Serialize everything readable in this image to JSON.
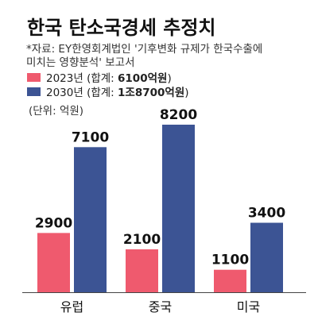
{
  "chart_data": {
    "type": "bar",
    "title": "한국 탄소국경세 추정치",
    "source": [
      "*자료: EY한영회계법인 '기후변화 규제가 한국수출에",
      "미치는 영향분석' 보고서"
    ],
    "unit": "(단위: 억원)",
    "categories": [
      "유럽",
      "중국",
      "미국"
    ],
    "series": [
      {
        "name_prefix": "2023년 (합계: ",
        "name_total": "6100억원",
        "name_suffix": ")",
        "color": "#ef5a6e",
        "values": [
          2900,
          2100,
          1100
        ],
        "labels": [
          "2900",
          "2100",
          "1100"
        ]
      },
      {
        "name_prefix": "2030년 (합계: ",
        "name_total": "1조8700억원",
        "name_suffix": ")",
        "color": "#3c5494",
        "values": [
          7100,
          8200,
          3400
        ],
        "labels": [
          "7100",
          "8200",
          "3400"
        ]
      }
    ],
    "ylim": [
      0,
      8200
    ],
    "legend": "top-left",
    "grid": false
  }
}
